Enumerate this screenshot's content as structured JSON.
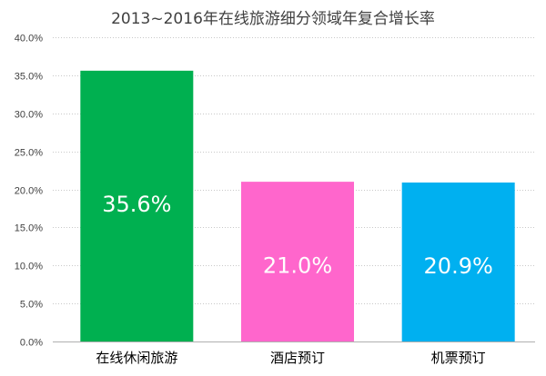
{
  "chart_data": {
    "type": "bar",
    "title": "2013~2016年在线旅游细分领域年复合增长率",
    "xlabel": "",
    "ylabel": "",
    "categories": [
      "在线休闲旅游",
      "酒店预订",
      "机票预订"
    ],
    "values": [
      35.6,
      21.0,
      20.9
    ],
    "value_labels": [
      "35.6%",
      "21.0%",
      "20.9%"
    ],
    "colors": [
      "#00b050",
      "#ff66cc",
      "#00b0f0"
    ],
    "ylim": [
      0,
      40
    ],
    "y_ticks": [
      "0.0%",
      "5.0%",
      "10.0%",
      "15.0%",
      "20.0%",
      "25.0%",
      "30.0%",
      "35.0%",
      "40.0%"
    ],
    "y_tick_values": [
      0,
      5,
      10,
      15,
      20,
      25,
      30,
      35,
      40
    ],
    "grid": true,
    "legend": "none"
  }
}
